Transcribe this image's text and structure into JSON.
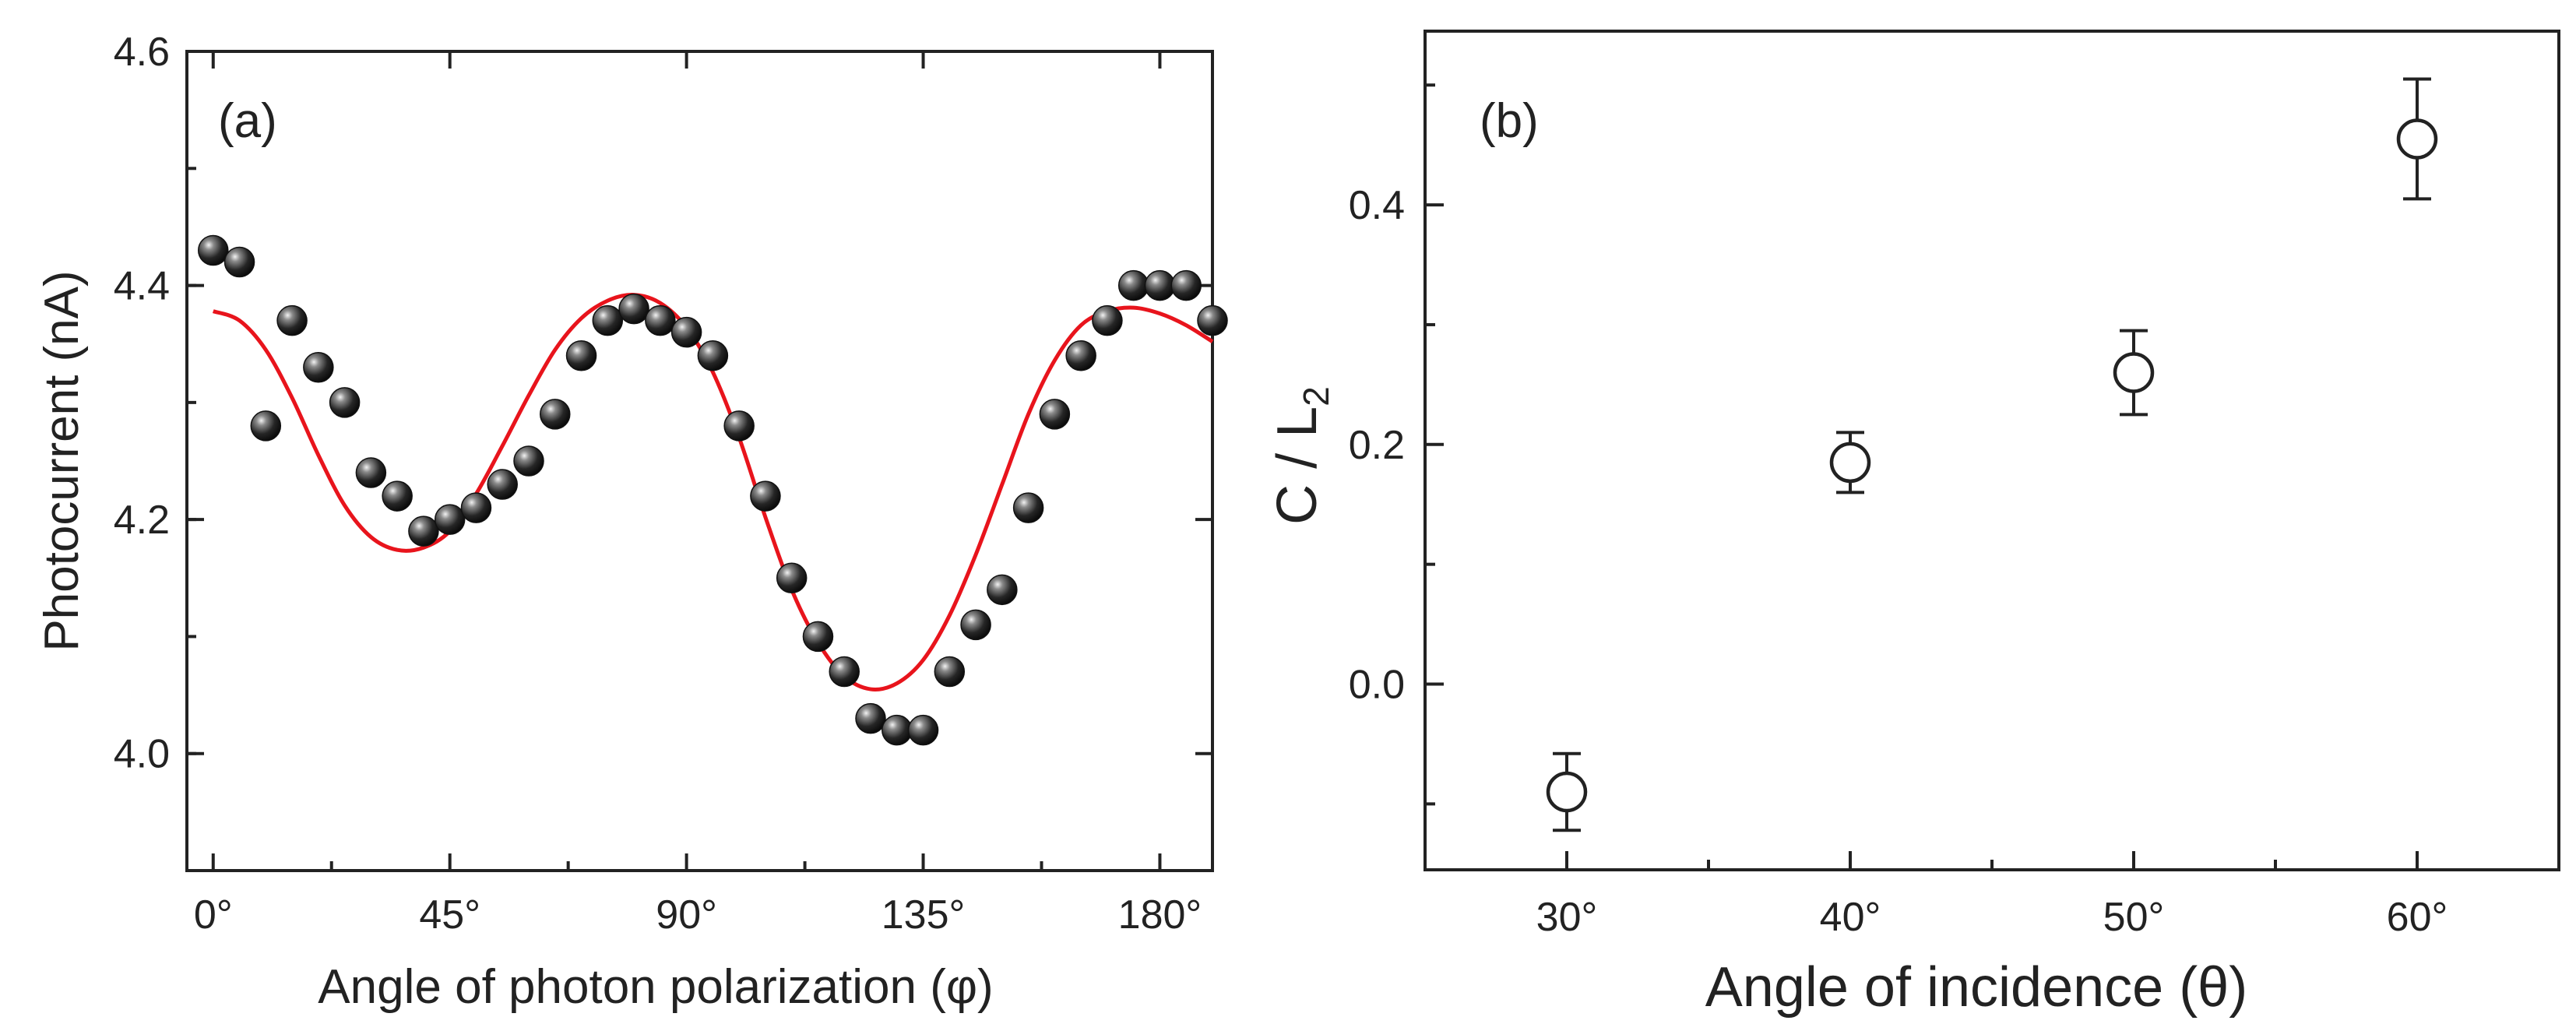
{
  "chart_data": [
    {
      "panel_label": "(a)",
      "type": "scatter",
      "xlabel": "Angle of photon polarization (φ)",
      "ylabel": "Photocurrent (nA)",
      "xlim": [
        -5,
        190
      ],
      "ylim": [
        3.9,
        4.6
      ],
      "xticks": [
        0,
        45,
        90,
        135,
        180
      ],
      "xtick_labels": [
        "0°",
        "45°",
        "90°",
        "135°",
        "180°"
      ],
      "yticks": [
        4.0,
        4.2,
        4.4,
        4.6
      ],
      "ytick_labels": [
        "4.0",
        "4.2",
        "4.4",
        "4.6"
      ],
      "grid": false,
      "marker_color": "#111111",
      "fit_color": "#e8141c",
      "series": [
        {
          "kind": "points",
          "x": [
            0,
            5,
            10,
            15,
            20,
            25,
            30,
            35,
            40,
            45,
            50,
            55,
            60,
            65,
            70,
            75,
            80,
            85,
            90,
            95,
            100,
            105,
            110,
            115,
            120,
            125,
            130,
            135,
            140,
            145,
            150,
            155,
            160,
            165,
            170,
            175,
            180,
            185,
            190
          ],
          "y": [
            4.43,
            4.42,
            4.28,
            4.37,
            4.33,
            4.3,
            4.24,
            4.22,
            4.19,
            4.2,
            4.21,
            4.23,
            4.25,
            4.29,
            4.34,
            4.37,
            4.38,
            4.37,
            4.36,
            4.34,
            4.28,
            4.22,
            4.15,
            4.1,
            4.07,
            4.03,
            4.02,
            4.02,
            4.07,
            4.11,
            4.14,
            4.21,
            4.29,
            4.34,
            4.37,
            4.4,
            4.4,
            4.4,
            4.37
          ]
        },
        {
          "kind": "fit-curve",
          "x": [
            0,
            5,
            10,
            15,
            20,
            25,
            30,
            35,
            40,
            45,
            50,
            55,
            60,
            65,
            70,
            75,
            80,
            85,
            90,
            95,
            100,
            105,
            110,
            115,
            120,
            125,
            130,
            135,
            140,
            145,
            150,
            155,
            160,
            165,
            170,
            175,
            180,
            185,
            190
          ],
          "y": [
            4.378,
            4.37,
            4.345,
            4.304,
            4.255,
            4.212,
            4.185,
            4.174,
            4.176,
            4.19,
            4.222,
            4.263,
            4.306,
            4.345,
            4.372,
            4.387,
            4.392,
            4.385,
            4.364,
            4.326,
            4.27,
            4.202,
            4.14,
            4.095,
            4.066,
            4.055,
            4.06,
            4.08,
            4.118,
            4.17,
            4.23,
            4.29,
            4.336,
            4.366,
            4.378,
            4.381,
            4.376,
            4.366,
            4.352
          ]
        }
      ]
    },
    {
      "panel_label": "(b)",
      "type": "scatter",
      "xlabel": "Angle of incidence (θ)",
      "ylabel": "C / L",
      "ylabel_subscript": "2",
      "xlim": [
        25,
        65
      ],
      "ylim": [
        -0.155,
        0.545
      ],
      "xticks": [
        30,
        40,
        50,
        60
      ],
      "xtick_labels": [
        "30°",
        "40°",
        "50°",
        "60°"
      ],
      "yticks": [
        0.0,
        0.2,
        0.4
      ],
      "ytick_labels": [
        "0.0",
        "0.2",
        "0.4"
      ],
      "grid": false,
      "marker": "open-circle",
      "series": [
        {
          "kind": "points-with-errorbars",
          "x": [
            30,
            40,
            50,
            60
          ],
          "y": [
            -0.09,
            0.185,
            0.26,
            0.455
          ],
          "yerr": [
            0.032,
            0.025,
            0.035,
            0.05
          ]
        }
      ]
    }
  ]
}
